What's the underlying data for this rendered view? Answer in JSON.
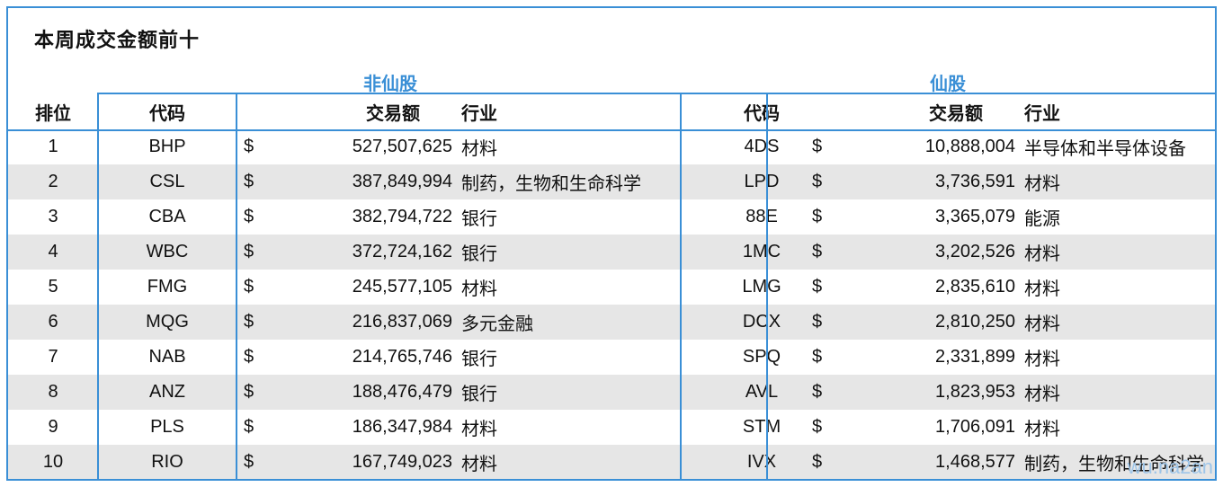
{
  "title": "本周成交金额前十",
  "groups": {
    "non_penny": "非仙股",
    "penny": "仙股"
  },
  "headers": {
    "rank": "排位",
    "code": "代码",
    "amount": "交易额",
    "industry": "行业",
    "code2": "代码",
    "amount2": "交易额",
    "industry2": "行业"
  },
  "currency": "$",
  "rows": [
    {
      "rank": "1",
      "code": "BHP",
      "amount": "527,507,625",
      "industry": "材料",
      "code2": "4DS",
      "amount2": "10,888,004",
      "industry2": "半导体和半导体设备"
    },
    {
      "rank": "2",
      "code": "CSL",
      "amount": "387,849,994",
      "industry": "制药，生物和生命科学",
      "code2": "LPD",
      "amount2": "3,736,591",
      "industry2": "材料"
    },
    {
      "rank": "3",
      "code": "CBA",
      "amount": "382,794,722",
      "industry": "银行",
      "code2": "88E",
      "amount2": "3,365,079",
      "industry2": "能源"
    },
    {
      "rank": "4",
      "code": "WBC",
      "amount": "372,724,162",
      "industry": "银行",
      "code2": "1MC",
      "amount2": "3,202,526",
      "industry2": "材料"
    },
    {
      "rank": "5",
      "code": "FMG",
      "amount": "245,577,105",
      "industry": "材料",
      "code2": "LMG",
      "amount2": "2,835,610",
      "industry2": "材料"
    },
    {
      "rank": "6",
      "code": "MQG",
      "amount": "216,837,069",
      "industry": "多元金融",
      "code2": "DCX",
      "amount2": "2,810,250",
      "industry2": "材料"
    },
    {
      "rank": "7",
      "code": "NAB",
      "amount": "214,765,746",
      "industry": "银行",
      "code2": "SPQ",
      "amount2": "2,331,899",
      "industry2": "材料"
    },
    {
      "rank": "8",
      "code": "ANZ",
      "amount": "188,476,479",
      "industry": "银行",
      "code2": "AVL",
      "amount2": "1,823,953",
      "industry2": "材料"
    },
    {
      "rank": "9",
      "code": "PLS",
      "amount": "186,347,984",
      "industry": "材料",
      "code2": "STM",
      "amount2": "1,706,091",
      "industry2": "材料"
    },
    {
      "rank": "10",
      "code": "RIO",
      "amount": "167,749,023",
      "industry": "材料",
      "code2": "IVX",
      "amount2": "1,468,577",
      "industry2": "制药，生物和生命科学"
    }
  ],
  "watermark": "wu.na2an"
}
